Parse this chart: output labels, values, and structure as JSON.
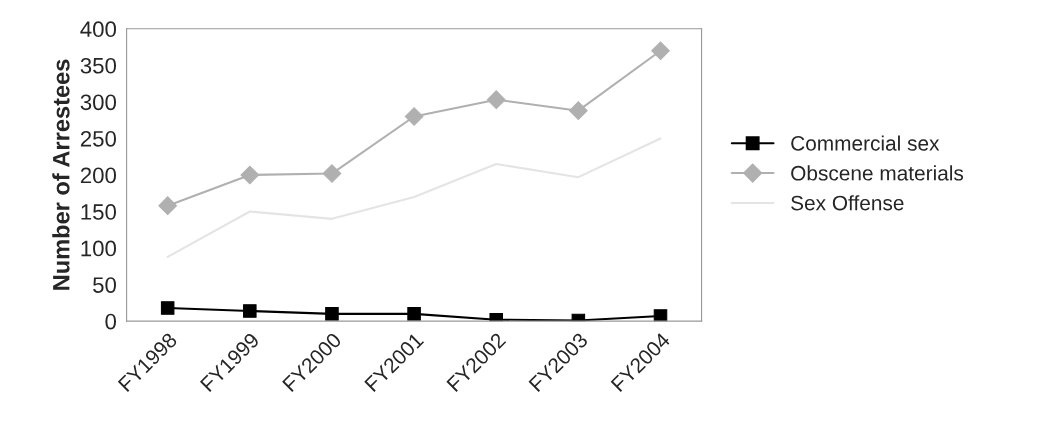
{
  "chart_data": {
    "type": "line",
    "ylabel": "Number of Arrestees",
    "categories": [
      "FY1998",
      "FY1999",
      "FY2000",
      "FY2001",
      "FY2002",
      "FY2003",
      "FY2004"
    ],
    "series": [
      {
        "name": "Commercial sex",
        "color": "#000000",
        "marker": "square",
        "values": [
          18,
          14,
          10,
          10,
          2,
          1,
          7
        ]
      },
      {
        "name": "Obscene materials",
        "color": "#b0b0b0",
        "marker": "diamond",
        "values": [
          158,
          200,
          202,
          280,
          303,
          288,
          370
        ]
      },
      {
        "name": "Sex Offense",
        "color": "#e4e4e4",
        "marker": "none",
        "values": [
          88,
          150,
          140,
          170,
          215,
          197,
          250
        ]
      }
    ],
    "ylim": [
      0,
      400
    ],
    "yticks": [
      0,
      50,
      100,
      150,
      200,
      250,
      300,
      350,
      400
    ],
    "grid": false,
    "legend": "right"
  }
}
